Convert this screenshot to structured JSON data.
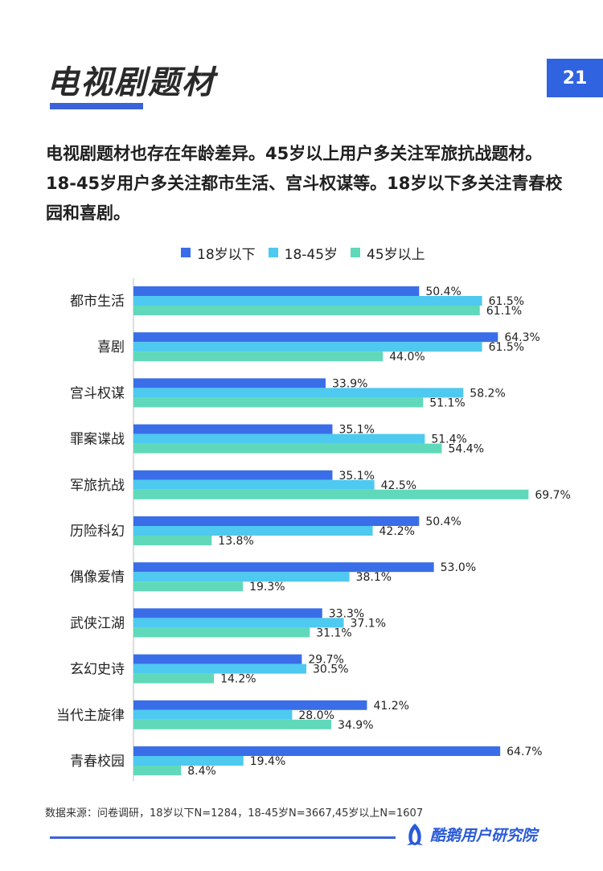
{
  "page": {
    "title": "电视剧题材",
    "number": "21",
    "intro": "电视剧题材也存在年龄差异。45岁以上用户多关注军旅抗战题材。18-45岁用户多关注都市生活、宫斗权谋等。18岁以下多关注青春校园和喜剧。",
    "source": "数据来源：问卷调研，18岁以下N=1284，18-45岁N=3667,45岁以上N=1607",
    "brand": "酷鹅用户研究院",
    "brand_icon": "penguin-logo-icon"
  },
  "chart_data": {
    "type": "bar",
    "orientation": "horizontal",
    "categories": [
      "都市生活",
      "喜剧",
      "宫斗权谋",
      "罪案谍战",
      "军旅抗战",
      "历险科幻",
      "偶像爱情",
      "武侠江湖",
      "玄幻史诗",
      "当代主旋律",
      "青春校园"
    ],
    "series": [
      {
        "name": "18岁以下",
        "color": "#3a6ee8",
        "values": [
          50.4,
          64.3,
          33.9,
          35.1,
          35.1,
          50.4,
          53.0,
          33.3,
          29.7,
          41.2,
          64.7
        ]
      },
      {
        "name": "18-45岁",
        "color": "#4ec9f0",
        "values": [
          61.5,
          61.5,
          58.2,
          51.4,
          42.5,
          42.2,
          38.1,
          37.1,
          30.5,
          28.0,
          19.4
        ]
      },
      {
        "name": "45岁以上",
        "color": "#5fd9b9",
        "values": [
          61.1,
          44.0,
          51.1,
          54.4,
          69.7,
          13.8,
          19.3,
          31.1,
          14.2,
          34.9,
          8.4
        ]
      }
    ],
    "value_suffix": "%",
    "xlim": [
      0,
      100
    ],
    "grid": false,
    "legend_position": "top"
  }
}
